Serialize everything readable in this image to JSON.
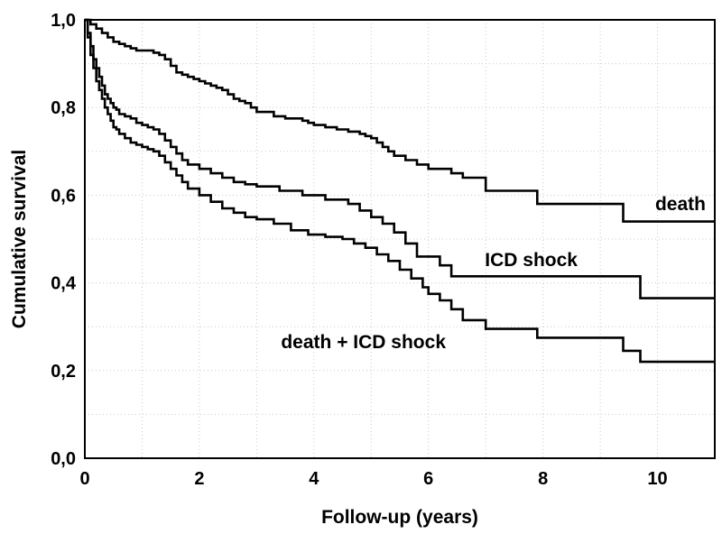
{
  "chart_data": {
    "type": "line",
    "step": true,
    "xlabel": "Follow-up (years)",
    "ylabel": "Cumulative survival",
    "xlim": [
      0,
      11
    ],
    "ylim": [
      0,
      1
    ],
    "x_ticks": [
      0,
      2,
      4,
      6,
      8,
      10
    ],
    "x_tick_labels": [
      "0",
      "2",
      "4",
      "6",
      "8",
      "10"
    ],
    "y_ticks": [
      0,
      0.2,
      0.4,
      0.6,
      0.8,
      1.0
    ],
    "y_tick_labels": [
      "0,0",
      "0,2",
      "0,4",
      "0,6",
      "0,8",
      "1,0"
    ],
    "grid": true,
    "series": [
      {
        "name": "death",
        "x": [
          0,
          0.1,
          0.2,
          0.3,
          0.4,
          0.5,
          0.6,
          0.7,
          0.8,
          0.9,
          1.0,
          1.2,
          1.3,
          1.4,
          1.5,
          1.6,
          1.7,
          1.8,
          1.9,
          2.0,
          2.1,
          2.2,
          2.3,
          2.4,
          2.5,
          2.6,
          2.7,
          2.8,
          2.9,
          3.0,
          3.3,
          3.5,
          3.8,
          3.9,
          4.0,
          4.2,
          4.4,
          4.6,
          4.8,
          4.9,
          5.0,
          5.1,
          5.2,
          5.3,
          5.4,
          5.6,
          5.8,
          6.0,
          6.4,
          6.6,
          7.0,
          7.9,
          9.4,
          11.0
        ],
        "y": [
          1.0,
          0.99,
          0.98,
          0.97,
          0.96,
          0.95,
          0.945,
          0.94,
          0.935,
          0.93,
          0.93,
          0.925,
          0.92,
          0.91,
          0.895,
          0.88,
          0.875,
          0.87,
          0.865,
          0.86,
          0.855,
          0.85,
          0.845,
          0.84,
          0.83,
          0.82,
          0.815,
          0.81,
          0.8,
          0.79,
          0.78,
          0.775,
          0.77,
          0.765,
          0.76,
          0.755,
          0.75,
          0.745,
          0.74,
          0.735,
          0.73,
          0.72,
          0.71,
          0.7,
          0.69,
          0.68,
          0.67,
          0.66,
          0.65,
          0.64,
          0.61,
          0.58,
          0.54,
          0.54
        ]
      },
      {
        "name": "ICD shock",
        "x": [
          0,
          0.05,
          0.1,
          0.15,
          0.2,
          0.25,
          0.3,
          0.35,
          0.4,
          0.45,
          0.5,
          0.55,
          0.6,
          0.7,
          0.8,
          0.9,
          1.0,
          1.1,
          1.2,
          1.3,
          1.4,
          1.5,
          1.6,
          1.7,
          1.8,
          2.0,
          2.2,
          2.4,
          2.6,
          2.8,
          3.0,
          3.4,
          3.8,
          4.2,
          4.6,
          4.8,
          5.0,
          5.2,
          5.4,
          5.6,
          5.8,
          6.2,
          6.4,
          6.6,
          9.7,
          11.0
        ],
        "y": [
          1.0,
          0.97,
          0.94,
          0.91,
          0.89,
          0.87,
          0.85,
          0.83,
          0.82,
          0.81,
          0.8,
          0.795,
          0.785,
          0.78,
          0.775,
          0.765,
          0.76,
          0.755,
          0.75,
          0.74,
          0.725,
          0.71,
          0.695,
          0.68,
          0.67,
          0.66,
          0.65,
          0.64,
          0.63,
          0.625,
          0.62,
          0.61,
          0.6,
          0.59,
          0.58,
          0.565,
          0.55,
          0.535,
          0.515,
          0.49,
          0.46,
          0.44,
          0.415,
          0.415,
          0.365,
          0.365
        ]
      },
      {
        "name": "death + ICD shock",
        "x": [
          0,
          0.05,
          0.1,
          0.15,
          0.2,
          0.25,
          0.3,
          0.35,
          0.4,
          0.45,
          0.5,
          0.55,
          0.6,
          0.7,
          0.8,
          0.9,
          1.0,
          1.1,
          1.2,
          1.3,
          1.4,
          1.5,
          1.6,
          1.7,
          1.8,
          2.0,
          2.2,
          2.4,
          2.6,
          2.8,
          3.0,
          3.3,
          3.6,
          3.9,
          4.2,
          4.5,
          4.7,
          4.9,
          5.1,
          5.3,
          5.5,
          5.7,
          5.9,
          6.0,
          6.2,
          6.4,
          6.6,
          7.0,
          7.9,
          9.4,
          9.7,
          11.0
        ],
        "y": [
          1.0,
          0.96,
          0.92,
          0.89,
          0.86,
          0.84,
          0.82,
          0.8,
          0.785,
          0.77,
          0.755,
          0.75,
          0.74,
          0.73,
          0.72,
          0.715,
          0.71,
          0.705,
          0.7,
          0.69,
          0.675,
          0.66,
          0.645,
          0.63,
          0.615,
          0.6,
          0.585,
          0.57,
          0.56,
          0.55,
          0.545,
          0.535,
          0.52,
          0.51,
          0.505,
          0.5,
          0.49,
          0.48,
          0.465,
          0.45,
          0.43,
          0.41,
          0.39,
          0.375,
          0.36,
          0.34,
          0.315,
          0.295,
          0.275,
          0.245,
          0.22,
          0.22
        ]
      }
    ],
    "annotations": [
      {
        "text": "death",
        "series": "death"
      },
      {
        "text": "ICD shock",
        "series": "ICD shock"
      },
      {
        "text": "death + ICD shock",
        "series": "death + ICD shock"
      }
    ]
  }
}
